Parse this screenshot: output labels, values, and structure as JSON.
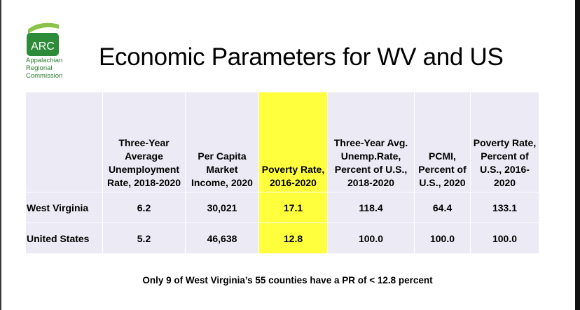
{
  "logo": {
    "abbr": "ARC",
    "lines": [
      "Appalachian",
      "Regional",
      "Commission"
    ],
    "color": "#2e7d32"
  },
  "title": "Economic Parameters for WV and US",
  "table": {
    "headers": [
      "",
      "Three-Year Average Unemployment Rate, 2018-2020",
      "Per Capita Market Income, 2020",
      "Poverty Rate, 2016-2020",
      "Three-Year Avg. Unemp.Rate, Percent of U.S., 2018-2020",
      "PCMI, Percent of U.S., 2020",
      "Poverty Rate, Percent of U.S., 2016-2020"
    ],
    "rows": [
      {
        "label": "West Virginia",
        "values": [
          "6.2",
          "30,021",
          "17.1",
          "118.4",
          "64.4",
          "133.1"
        ]
      },
      {
        "label": "United States",
        "values": [
          "5.2",
          "46,638",
          "12.8",
          "100.0",
          "100.0",
          "100.0"
        ]
      }
    ],
    "highlight_color": "#ffff3d"
  },
  "footnote": "Only 9 of West Virginia’s 55 counties have a PR of < 12.8 percent"
}
